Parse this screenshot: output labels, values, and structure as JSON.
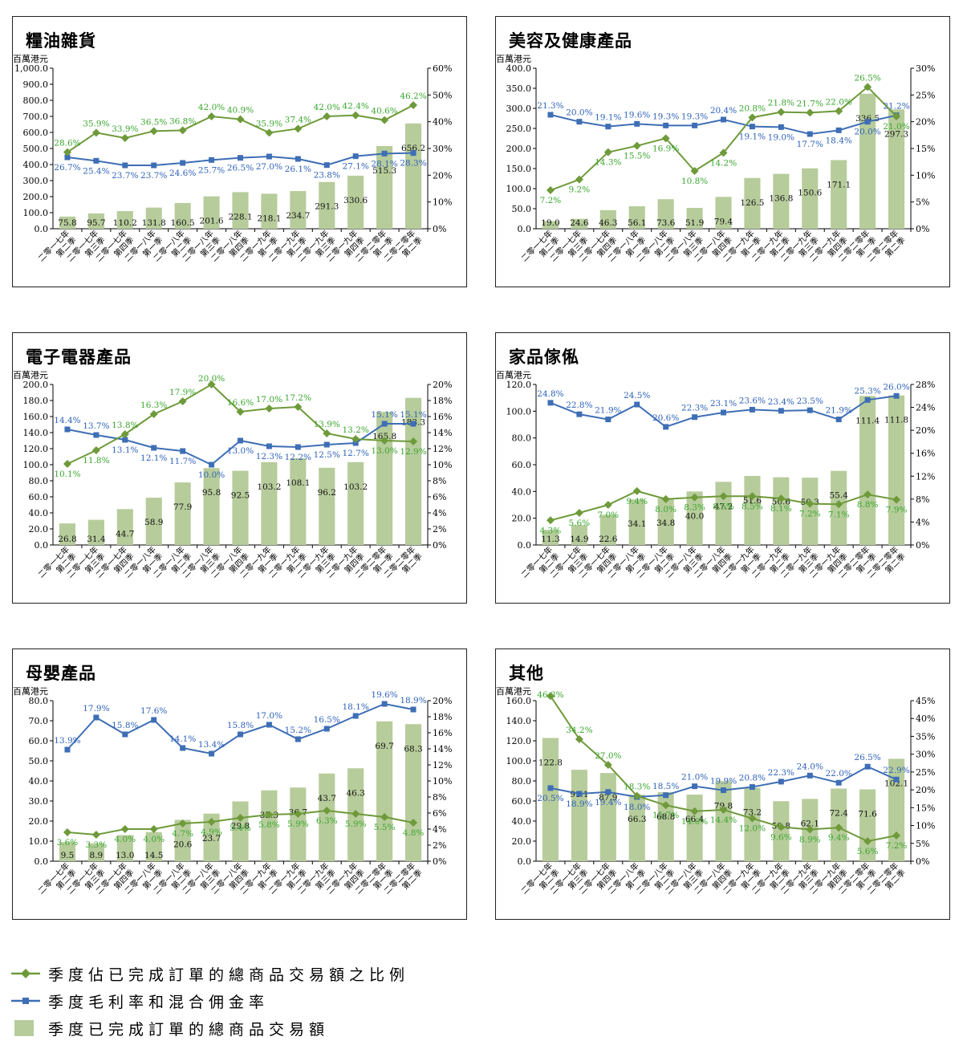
{
  "categories": [
    [
      "二零一七年",
      "第二季"
    ],
    [
      "二零一七年",
      "第三季"
    ],
    [
      "二零一七年",
      "第四季"
    ],
    [
      "二零一八年",
      "第一季"
    ],
    [
      "二零一八年",
      "第二季"
    ],
    [
      "二零一八年",
      "第三季"
    ],
    [
      "二零一八年",
      "第四季"
    ],
    [
      "二零一九年",
      "第一季"
    ],
    [
      "二零一九年",
      "第二季"
    ],
    [
      "二零一九年",
      "第三季"
    ],
    [
      "二零一九年",
      "第四季"
    ],
    [
      "二零二零年",
      "第一季"
    ],
    [
      "二零二零年",
      "第二季"
    ]
  ],
  "colors": {
    "bar": "#b7cc9b",
    "ratio": "#6e9a3a",
    "ratio_label": "#3aa62e",
    "margin": "#3e6eb5",
    "margin_label": "#2f62b9"
  },
  "legend": {
    "ratio": "季度佔已完成訂單的總商品交易額之比例",
    "margin": "季度毛利率和混合佣金率",
    "gmv": "季度已完成訂單的總商品交易額"
  },
  "chart_data": [
    {
      "type": "bar",
      "title": "糧油雜貨",
      "ylabel": "百萬港元",
      "ylim": [
        0,
        1000
      ],
      "y_ticks": [
        "0.0",
        "100.0",
        "200.0",
        "300.0",
        "400.0",
        "500.0",
        "600.0",
        "700.0",
        "800.0",
        "900.0",
        "1,000.0"
      ],
      "y2lim": [
        0,
        60
      ],
      "y2_ticks": [
        "0%",
        "10%",
        "20%",
        "30%",
        "40%",
        "50%",
        "60%"
      ],
      "gmv": [
        75.8,
        95.7,
        110.2,
        131.8,
        160.5,
        201.6,
        228.1,
        218.1,
        234.7,
        291.3,
        330.6,
        515.3,
        656.2
      ],
      "gmv_labels": [
        "75.8",
        "95.7",
        "110.2",
        "131.8",
        "160.5",
        "201.6",
        "228.1",
        "218.1",
        "234.7",
        "291.3",
        "330.6",
        "515.3",
        "656.2"
      ],
      "ratio": [
        28.6,
        35.9,
        33.9,
        36.5,
        36.8,
        42.0,
        40.9,
        35.9,
        37.4,
        42.0,
        42.4,
        40.6,
        46.2
      ],
      "ratio_labels": [
        "28.6%",
        "35.9%",
        "33.9%",
        "36.5%",
        "36.8%",
        "42.0%",
        "40.9%",
        "35.9%",
        "37.4%",
        "42.0%",
        "42.4%",
        "40.6%",
        "46.2%"
      ],
      "margin": [
        26.7,
        25.4,
        23.7,
        23.7,
        24.6,
        25.7,
        26.5,
        27.0,
        26.1,
        23.8,
        27.1,
        28.1,
        28.3
      ],
      "margin_labels": [
        "26.7%",
        "25.4%",
        "23.7%",
        "23.7%",
        "24.6%",
        "25.7%",
        "26.5%",
        "27.0%",
        "26.1%",
        "23.8%",
        "27.1%",
        "28.1%",
        "28.3%"
      ]
    },
    {
      "type": "bar",
      "title": "美容及健康產品",
      "ylabel": "百萬港元",
      "ylim": [
        0,
        400
      ],
      "y_ticks": [
        "0.0",
        "50.0",
        "100.0",
        "150.0",
        "200.0",
        "250.0",
        "300.0",
        "350.0",
        "400.0"
      ],
      "y2lim": [
        0,
        30
      ],
      "y2_ticks": [
        "0%",
        "5%",
        "10%",
        "15%",
        "20%",
        "25%",
        "30%"
      ],
      "gmv": [
        19.0,
        24.6,
        46.3,
        56.1,
        73.6,
        51.9,
        79.4,
        126.5,
        136.8,
        150.6,
        171.1,
        336.5,
        297.3
      ],
      "gmv_labels": [
        "19.0",
        "24.6",
        "46.3",
        "56.1",
        "73.6",
        "51.9",
        "79.4",
        "126.5",
        "136.8",
        "150.6",
        "171.1",
        "336.5",
        "297.3"
      ],
      "ratio": [
        7.2,
        9.2,
        14.3,
        15.5,
        16.9,
        10.8,
        14.2,
        20.8,
        21.8,
        21.7,
        22.0,
        26.5,
        21.0
      ],
      "ratio_labels": [
        "7.2%",
        "9.2%",
        "14.3%",
        "15.5%",
        "16.9%",
        "10.8%",
        "14.2%",
        "20.8%",
        "21.8%",
        "21.7%",
        "22.0%",
        "26.5%",
        "21.0%"
      ],
      "margin": [
        21.3,
        20.0,
        19.1,
        19.6,
        19.3,
        19.3,
        20.4,
        19.1,
        19.0,
        17.7,
        18.4,
        20.0,
        21.2
      ],
      "margin_labels": [
        "21.3%",
        "20.0%",
        "19.1%",
        "19.6%",
        "19.3%",
        "19.3%",
        "20.4%",
        "19.1%",
        "19.0%",
        "17.7%",
        "18.4%",
        "20.0%",
        "21.2%"
      ]
    },
    {
      "type": "bar",
      "title": "電子電器產品",
      "ylabel": "百萬港元",
      "ylim": [
        0,
        200
      ],
      "y_ticks": [
        "0.0",
        "20.0",
        "40.0",
        "60.0",
        "80.0",
        "100.0",
        "120.0",
        "140.0",
        "160.0",
        "180.0",
        "200.0"
      ],
      "y2lim": [
        0,
        20
      ],
      "y2_ticks": [
        "0%",
        "2%",
        "4%",
        "6%",
        "8%",
        "10%",
        "12%",
        "14%",
        "16%",
        "18%",
        "20%"
      ],
      "gmv": [
        26.8,
        31.4,
        44.7,
        58.9,
        77.9,
        95.8,
        92.5,
        103.2,
        108.1,
        96.2,
        103.2,
        165.8,
        183.3
      ],
      "gmv_labels": [
        "26.8",
        "31.4",
        "44.7",
        "58.9",
        "77.9",
        "95.8",
        "92.5",
        "103.2",
        "108.1",
        "96.2",
        "103.2",
        "165.8",
        "183.3"
      ],
      "ratio": [
        10.1,
        11.8,
        13.8,
        16.3,
        17.9,
        20.0,
        16.6,
        17.0,
        17.2,
        13.9,
        13.2,
        13.0,
        12.9
      ],
      "ratio_labels": [
        "10.1%",
        "11.8%",
        "13.8%",
        "16.3%",
        "17.9%",
        "20.0%",
        "16.6%",
        "17.0%",
        "17.2%",
        "13.9%",
        "13.2%",
        "13.0%",
        "12.9%"
      ],
      "margin": [
        14.4,
        13.7,
        13.1,
        12.1,
        11.7,
        10.0,
        13.0,
        12.3,
        12.2,
        12.5,
        12.7,
        15.1,
        15.1
      ],
      "margin_labels": [
        "14.4%",
        "13.7%",
        "13.1%",
        "12.1%",
        "11.7%",
        "10.0%",
        "13.0%",
        "12.3%",
        "12.2%",
        "12.5%",
        "12.7%",
        "15.1%",
        "15.1%"
      ]
    },
    {
      "type": "bar",
      "title": "家品傢俬",
      "ylabel": "百萬港元",
      "ylim": [
        0,
        120
      ],
      "y_ticks": [
        "0.0",
        "20.0",
        "40.0",
        "60.0",
        "80.0",
        "100.0",
        "120.0"
      ],
      "y2lim": [
        0,
        28
      ],
      "y2_ticks": [
        "0%",
        "4%",
        "8%",
        "12%",
        "16%",
        "20%",
        "24%",
        "28%"
      ],
      "gmv": [
        11.3,
        14.9,
        22.6,
        34.1,
        34.8,
        40.0,
        47.2,
        51.6,
        50.6,
        50.3,
        55.4,
        111.4,
        111.8
      ],
      "gmv_labels": [
        "11.3",
        "14.9",
        "22.6",
        "34.1",
        "34.8",
        "40.0",
        "47.2",
        "51.6",
        "50.6",
        "50.3",
        "55.4",
        "111.4",
        "111.8"
      ],
      "ratio": [
        4.3,
        5.6,
        7.0,
        9.4,
        8.0,
        8.3,
        8.5,
        8.5,
        8.1,
        7.2,
        7.1,
        8.8,
        7.9
      ],
      "ratio_labels": [
        "4.3%",
        "5.6%",
        "7.0%",
        "9.4%",
        "8.0%",
        "8.3%",
        "8.5%",
        "8.5%",
        "8.1%",
        "7.2%",
        "7.1%",
        "8.8%",
        "7.9%"
      ],
      "margin": [
        24.8,
        22.8,
        21.9,
        24.5,
        20.6,
        22.3,
        23.1,
        23.6,
        23.4,
        23.5,
        21.9,
        25.3,
        26.0
      ],
      "margin_labels": [
        "24.8%",
        "22.8%",
        "21.9%",
        "24.5%",
        "20.6%",
        "22.3%",
        "23.1%",
        "23.6%",
        "23.4%",
        "23.5%",
        "21.9%",
        "25.3%",
        "26.0%"
      ]
    },
    {
      "type": "bar",
      "title": "母嬰產品",
      "ylabel": "百萬港元",
      "ylim": [
        0,
        80
      ],
      "y_ticks": [
        "0.0",
        "10.0",
        "20.0",
        "30.0",
        "40.0",
        "50.0",
        "60.0",
        "70.0",
        "80.0"
      ],
      "y2lim": [
        0,
        20
      ],
      "y2_ticks": [
        "0%",
        "2%",
        "4%",
        "6%",
        "8%",
        "10%",
        "12%",
        "14%",
        "16%",
        "18%",
        "20%"
      ],
      "gmv": [
        9.5,
        8.9,
        13.0,
        14.5,
        20.6,
        23.7,
        29.8,
        35.3,
        36.7,
        43.7,
        46.3,
        69.7,
        68.3
      ],
      "gmv_labels": [
        "9.5",
        "8.9",
        "13.0",
        "14.5",
        "20.6",
        "23.7",
        "29.8",
        "35.3",
        "36.7",
        "43.7",
        "46.3",
        "69.7",
        "68.3"
      ],
      "ratio": [
        3.6,
        3.3,
        4.0,
        4.0,
        4.7,
        4.9,
        5.4,
        5.8,
        5.9,
        6.3,
        5.9,
        5.5,
        4.8
      ],
      "ratio_labels": [
        "3.6%",
        "3.3%",
        "4.0%",
        "4.0%",
        "4.7%",
        "4.9%",
        "5.4%",
        "5.8%",
        "5.9%",
        "6.3%",
        "5.9%",
        "5.5%",
        "4.8%"
      ],
      "margin": [
        13.9,
        17.9,
        15.8,
        17.6,
        14.1,
        13.4,
        15.8,
        17.0,
        15.2,
        16.5,
        18.1,
        19.6,
        18.9
      ],
      "margin_labels": [
        "13.9%",
        "17.9%",
        "15.8%",
        "17.6%",
        "14.1%",
        "13.4%",
        "15.8%",
        "17.0%",
        "15.2%",
        "16.5%",
        "18.1%",
        "19.6%",
        "18.9%"
      ]
    },
    {
      "type": "bar",
      "title": "其他",
      "ylabel": "百萬港元",
      "ylim": [
        0,
        160
      ],
      "y_ticks": [
        "0.0",
        "20.0",
        "40.0",
        "60.0",
        "80.0",
        "100.0",
        "120.0",
        "140.0",
        "160.0"
      ],
      "y2lim": [
        0,
        45
      ],
      "y2_ticks": [
        "0%",
        "5%",
        "10%",
        "15%",
        "20%",
        "25%",
        "30%",
        "35%",
        "40%",
        "45%"
      ],
      "gmv": [
        122.8,
        91.1,
        87.9,
        66.3,
        68.8,
        66.4,
        79.8,
        73.2,
        59.8,
        62.1,
        72.4,
        71.6,
        102.1
      ],
      "gmv_labels": [
        "122.8",
        "91.1",
        "87.9",
        "66.3",
        "68.8",
        "66.4",
        "79.8",
        "73.2",
        "59.8",
        "62.1",
        "72.4",
        "71.6",
        "102.1"
      ],
      "ratio": [
        46.3,
        34.2,
        27.0,
        18.3,
        15.7,
        14.0,
        14.4,
        12.0,
        9.6,
        8.9,
        9.4,
        5.6,
        7.2
      ],
      "ratio_labels": [
        "46.3%",
        "34.2%",
        "27.0%",
        "18.3%",
        "15.7%",
        "14.0%",
        "14.4%",
        "12.0%",
        "9.6%",
        "8.9%",
        "9.4%",
        "5.6%",
        "7.2%"
      ],
      "margin": [
        20.5,
        18.9,
        19.4,
        18.0,
        18.5,
        21.0,
        19.9,
        20.8,
        22.3,
        24.0,
        22.0,
        26.5,
        22.9
      ],
      "margin_labels": [
        "20.5%",
        "18.9%",
        "19.4%",
        "18.0%",
        "18.5%",
        "21.0%",
        "19.9%",
        "20.8%",
        "22.3%",
        "24.0%",
        "22.0%",
        "26.5%",
        "22.9%"
      ]
    }
  ]
}
